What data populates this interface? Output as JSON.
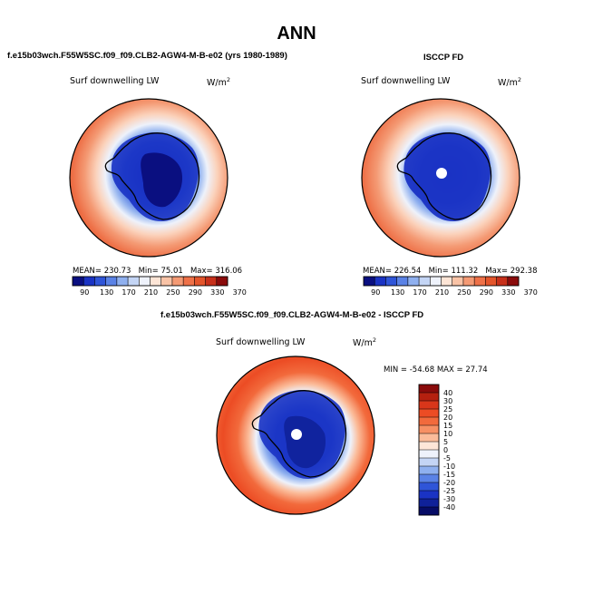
{
  "page": {
    "title": "ANN"
  },
  "panel_left": {
    "header": "f.e15b03wch.F55W5SC.f09_f09.CLB2-AGW4-M-B-e02 (yrs 1980-1989)",
    "variable": "Surf downwelling LW",
    "units": "W/m",
    "units_exp": "2",
    "stats": {
      "mean_label": "MEAN=",
      "mean": "230.73",
      "min_label": "Min=",
      "min": "75.01",
      "max_label": "Max=",
      "max": "316.06"
    },
    "colorbar_ticks": [
      "90",
      "130",
      "170",
      "210",
      "250",
      "290",
      "330",
      "370"
    ]
  },
  "panel_right": {
    "header": "ISCCP FD",
    "variable": "Surf downwelling LW",
    "units": "W/m",
    "units_exp": "2",
    "stats": {
      "mean_label": "MEAN=",
      "mean": "226.54",
      "min_label": "Min=",
      "min": "111.32",
      "max_label": "Max=",
      "max": "292.38"
    },
    "colorbar_ticks": [
      "90",
      "130",
      "170",
      "210",
      "250",
      "290",
      "330",
      "370"
    ]
  },
  "panel_diff": {
    "header": "f.e15b03wch.F55W5SC.f09_f09.CLB2-AGW4-M-B-e02 - ISCCP FD",
    "variable": "Surf downwelling LW",
    "units": "W/m",
    "units_exp": "2",
    "minmax": "MIN = -54.68 MAX =  27.74",
    "colorbar_ticks": [
      "40",
      "30",
      "25",
      "20",
      "15",
      "10",
      "5",
      "0",
      "-5",
      "-10",
      "-15",
      "-20",
      "-25",
      "-30",
      "-40"
    ]
  },
  "colors": {
    "abs_scale": [
      "#0a0f80",
      "#1a33c4",
      "#2f55d8",
      "#5a82e6",
      "#8fb0ef",
      "#c4d5f5",
      "#eef2fb",
      "#fde5d6",
      "#f9c3a6",
      "#f49a74",
      "#ee7148",
      "#e3552b",
      "#c7301a",
      "#8a0b0b"
    ],
    "diff_scale": [
      "#8a0b0b",
      "#b5200f",
      "#d9361a",
      "#ec4c24",
      "#f26a3c",
      "#f79064",
      "#fbbc9a",
      "#fde6d8",
      "#eef2fb",
      "#c4d5f5",
      "#8fb0ef",
      "#5a82e6",
      "#2f55d8",
      "#1a33c4",
      "#0f2199",
      "#060c66"
    ]
  }
}
